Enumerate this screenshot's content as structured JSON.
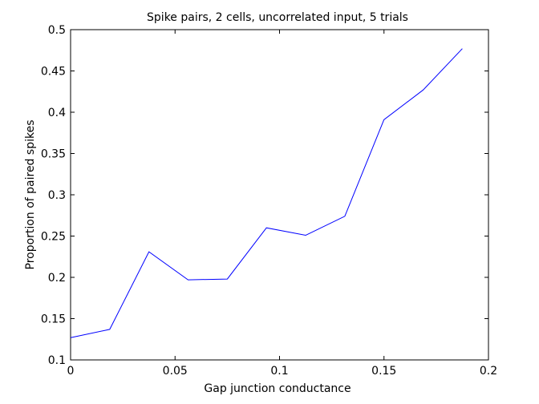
{
  "chart_data": {
    "type": "line",
    "title": "Spike pairs, 2 cells, uncorrelated input, 5 trials",
    "xlabel": "Gap junction conductance",
    "ylabel": "Proportion of paired spikes",
    "xlim": [
      0,
      0.2
    ],
    "ylim": [
      0.1,
      0.5
    ],
    "xticks": [
      0,
      0.05,
      0.1,
      0.15,
      0.2
    ],
    "xtick_labels": [
      "0",
      "0.05",
      "0.1",
      "0.15",
      "0.2"
    ],
    "yticks": [
      0.1,
      0.15,
      0.2,
      0.25,
      0.3,
      0.35,
      0.4,
      0.45,
      0.5
    ],
    "ytick_labels": [
      "0.1",
      "0.15",
      "0.2",
      "0.25",
      "0.3",
      "0.35",
      "0.4",
      "0.45",
      "0.5"
    ],
    "grid": false,
    "legend": "none",
    "line_color": "#0000ff",
    "series": [
      {
        "x": [
          0,
          0.01875,
          0.0375,
          0.05625,
          0.075,
          0.09375,
          0.1125,
          0.13125,
          0.15,
          0.16875,
          0.1875
        ],
        "values": [
          0.127,
          0.137,
          0.231,
          0.197,
          0.198,
          0.26,
          0.251,
          0.274,
          0.391,
          0.427,
          0.477
        ]
      }
    ]
  }
}
